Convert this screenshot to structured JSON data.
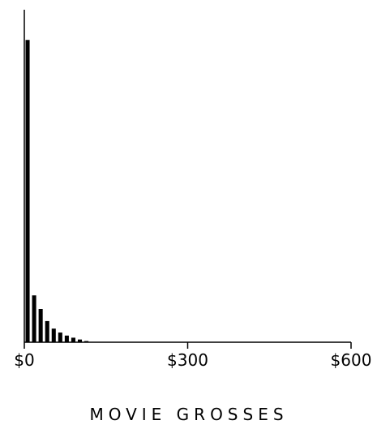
{
  "chart_data": {
    "type": "bar",
    "title": "",
    "xlabel": "MOVIE GROSSES",
    "ylabel": "",
    "bin_width": 12,
    "bins_start": [
      0,
      12,
      24,
      36,
      48,
      60,
      72,
      84,
      96,
      108
    ],
    "values": [
      1000,
      155,
      110,
      70,
      45,
      32,
      22,
      15,
      9,
      4
    ],
    "xlim": [
      0,
      600
    ],
    "ylim": [
      0,
      1100
    ],
    "x_ticks": [
      0,
      300,
      600
    ],
    "x_tick_labels": [
      "$0",
      "$300",
      "$600"
    ],
    "bar_color": "#000000",
    "grid": false
  }
}
